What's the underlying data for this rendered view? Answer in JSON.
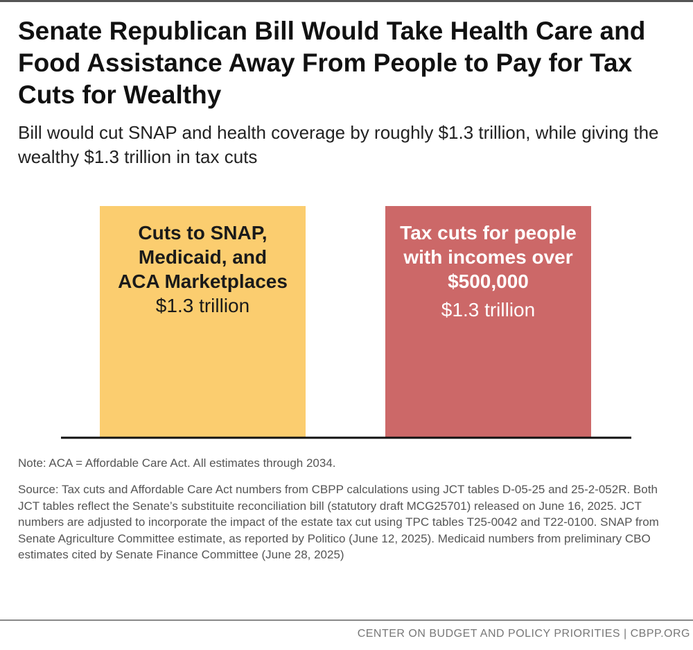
{
  "chart_data": {
    "type": "bar",
    "title": "Senate Republican Bill Would Take Health Care and Food Assistance Away From People to Pay for Tax Cuts for Wealthy",
    "subtitle": "Bill would cut SNAP and health coverage by roughly $1.3 trillion, while giving the wealthy $1.3 trillion in tax cuts",
    "categories": [
      "Cuts to SNAP, Medicaid, and ACA Marketplaces",
      "Tax cuts for people with incomes over $500,000"
    ],
    "category_lines": [
      [
        "Cuts to SNAP,",
        "Medicaid, and",
        "ACA Marketplaces"
      ],
      [
        "Tax cuts for people",
        "with incomes over",
        "$500,000"
      ]
    ],
    "values": [
      1.3,
      1.3
    ],
    "value_labels": [
      "$1.3 trillion",
      "$1.3 trillion"
    ],
    "unit": "trillion",
    "ylim": [
      0,
      1.3
    ],
    "colors": [
      "#fbcd6f",
      "#cc6868"
    ],
    "label_colors": [
      "#1a1a1a",
      "#ffffff"
    ],
    "grid": false,
    "legend": "none"
  },
  "note": "Note: ACA = Affordable Care Act. All estimates through 2034.",
  "source": "Source: Tax cuts and Affordable Care Act numbers from CBPP calculations using JCT tables D-05-25 and 25-2-052R. Both JCT tables reflect the Senate’s substituite reconciliation bill (statutory draft MCG25701) released on June 16, 2025. JCT numbers are adjusted to incorporate the impact of the estate tax cut using TPC tables T25-0042 and T22-0100. SNAP from Senate Agriculture Committee estimate, as reported by Politico (June 12, 2025). Medicaid numbers from preliminary CBO estimates cited by Senate Finance Committee (June 28, 2025)",
  "footer": "CENTER ON BUDGET AND POLICY PRIORITIES | CBPP.ORG"
}
